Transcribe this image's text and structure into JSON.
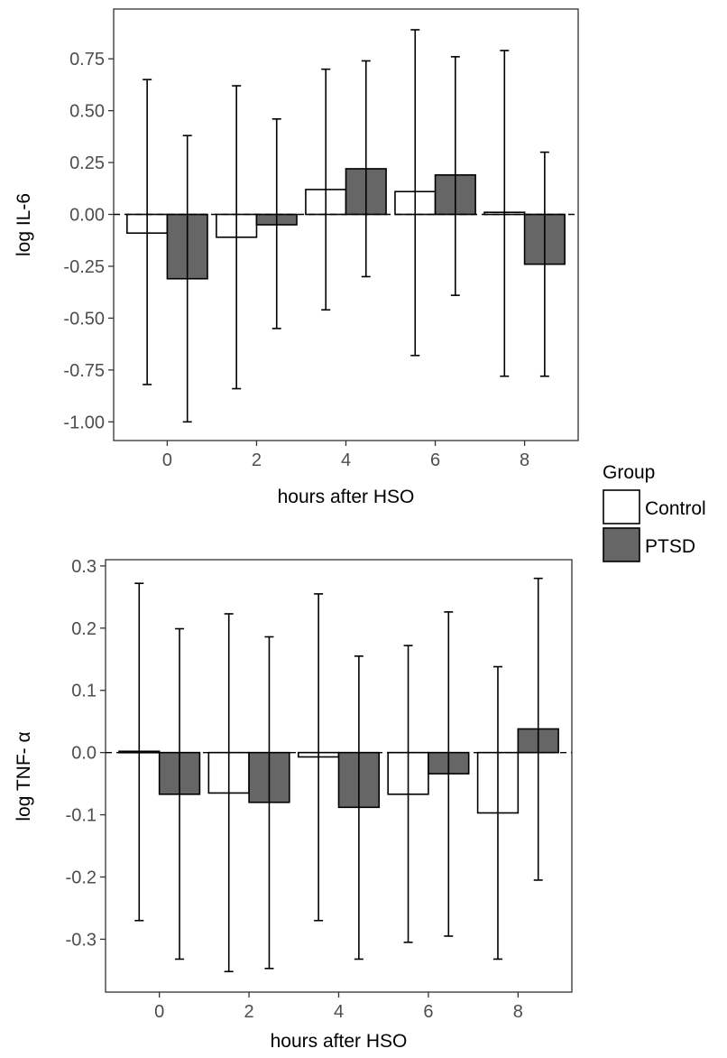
{
  "legend": {
    "title": "Group",
    "entries": [
      {
        "label": "Control",
        "fill": "#ffffff"
      },
      {
        "label": "PTSD",
        "fill": "#666666"
      }
    ]
  },
  "colors": {
    "control_fill": "#ffffff",
    "ptsd_fill": "#666666",
    "bar_outline": "#000000",
    "panel_border": "#333333",
    "tick_label": "#4d4d4d"
  },
  "chart_data": [
    {
      "type": "bar",
      "xlabel": "hours after HSO",
      "ylabel": "log IL-6",
      "categories": [
        "0",
        "2",
        "4",
        "6",
        "8"
      ],
      "yticks": [
        -1.0,
        -0.75,
        -0.5,
        -0.25,
        0.0,
        0.25,
        0.5,
        0.75
      ],
      "ytick_labels": [
        "-1.00",
        "-0.75",
        "-0.50",
        "-0.25",
        "0.00",
        "0.25",
        "0.50",
        "0.75"
      ],
      "ylim": [
        -1.09,
        0.99
      ],
      "grid": false,
      "reference_line": {
        "y": 0,
        "style": "dashed"
      },
      "series": [
        {
          "name": "Control",
          "values": [
            -0.09,
            -0.11,
            0.12,
            0.11,
            0.01
          ],
          "error_low": [
            -0.82,
            -0.84,
            -0.46,
            -0.68,
            -0.78
          ],
          "error_high": [
            0.65,
            0.62,
            0.7,
            0.89,
            0.79
          ]
        },
        {
          "name": "PTSD",
          "values": [
            -0.31,
            -0.05,
            0.22,
            0.19,
            -0.24
          ],
          "error_low": [
            -1.0,
            -0.55,
            -0.3,
            -0.39,
            -0.78
          ],
          "error_high": [
            0.38,
            0.46,
            0.74,
            0.76,
            0.3
          ]
        }
      ]
    },
    {
      "type": "bar",
      "xlabel": "hours after HSO",
      "ylabel": "log TNF- α",
      "categories": [
        "0",
        "2",
        "4",
        "6",
        "8"
      ],
      "yticks": [
        -0.3,
        -0.2,
        -0.1,
        0.0,
        0.1,
        0.2,
        0.3
      ],
      "ytick_labels": [
        "-0.3",
        "-0.2",
        "-0.1",
        "0.0",
        "0.1",
        "0.2",
        "0.3"
      ],
      "ylim": [
        -0.385,
        0.31
      ],
      "grid": false,
      "reference_line": {
        "y": 0,
        "style": "dashed"
      },
      "series": [
        {
          "name": "Control",
          "values": [
            0.002,
            -0.065,
            -0.007,
            -0.067,
            -0.097
          ],
          "error_low": [
            -0.27,
            -0.352,
            -0.27,
            -0.305,
            -0.332
          ],
          "error_high": [
            0.272,
            0.223,
            0.255,
            0.172,
            0.138
          ]
        },
        {
          "name": "PTSD",
          "values": [
            -0.067,
            -0.08,
            -0.088,
            -0.034,
            0.038
          ],
          "error_low": [
            -0.332,
            -0.347,
            -0.332,
            -0.295,
            -0.205
          ],
          "error_high": [
            0.199,
            0.186,
            0.155,
            0.226,
            0.28
          ]
        }
      ]
    }
  ]
}
